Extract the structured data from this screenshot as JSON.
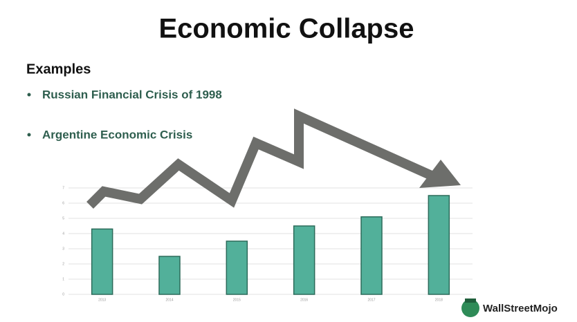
{
  "title": "Economic Collapse",
  "subtitle": "Examples",
  "bullets": [
    "Russian Financial Crisis of 1998",
    "Argentine Economic Crisis"
  ],
  "logo": "WallStreetMojo",
  "chart_data": {
    "type": "bar",
    "categories": [
      "2013",
      "2014",
      "2015",
      "2016",
      "2017",
      "2018"
    ],
    "values": [
      4.3,
      2.5,
      3.5,
      4.5,
      5.1,
      6.5
    ],
    "color": "#52b09a",
    "ylim": [
      0,
      7
    ],
    "yticks": [
      0,
      1,
      2,
      3,
      4,
      5,
      6,
      7
    ],
    "grid": true
  }
}
